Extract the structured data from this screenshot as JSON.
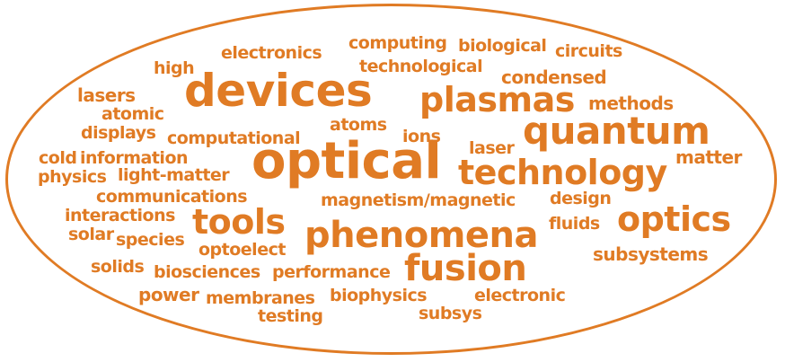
{
  "color": "#e07b24",
  "words": [
    "electronics",
    "computing",
    "biological",
    "circuits",
    "high",
    "technological",
    "condensed",
    "devices",
    "lasers",
    "plasmas",
    "methods",
    "atomic",
    "quantum",
    "atoms",
    "displays",
    "computational",
    "ions",
    "laser",
    "matter",
    "cold",
    "information",
    "optical",
    "technology",
    "physics",
    "light-matter",
    "communications",
    "magnetism/magnetic",
    "design",
    "interactions",
    "tools",
    "optics",
    "solar",
    "species",
    "phenomena",
    "fluids",
    "optoelect",
    "subsystems",
    "solids",
    "fusion",
    "biosciences",
    "performance",
    "power",
    "membranes",
    "biophysics",
    "electronic",
    "testing",
    "subsys"
  ]
}
